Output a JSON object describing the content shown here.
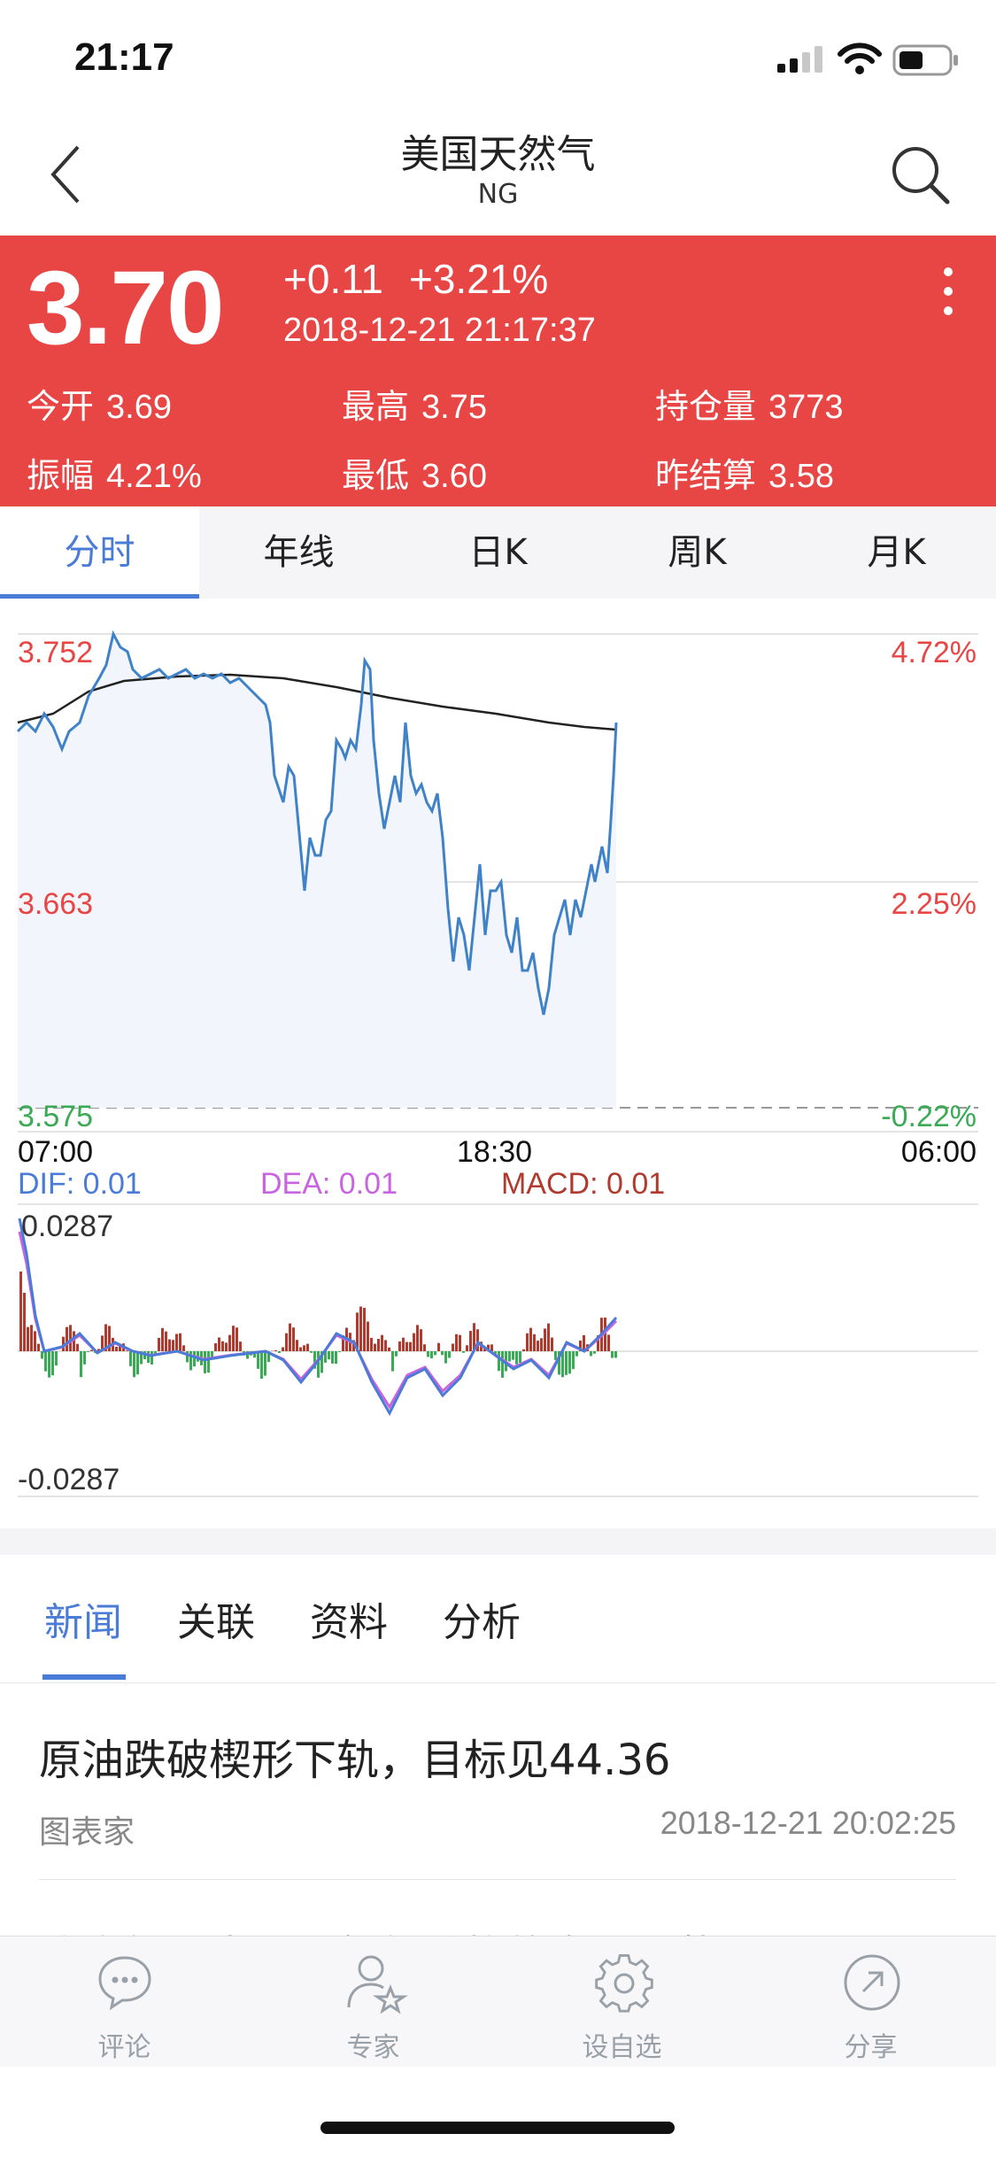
{
  "status": {
    "time": "21:17"
  },
  "nav": {
    "title": "美国天然气",
    "subtitle": "NG"
  },
  "quote": {
    "price": "3.70",
    "change": "+0.11",
    "change_pct": "+3.21%",
    "timestamp": "2018-12-21 21:17:37",
    "stats": [
      {
        "label": "今开",
        "value": "3.69"
      },
      {
        "label": "最高",
        "value": "3.75"
      },
      {
        "label": "持仓量",
        "value": "3773"
      },
      {
        "label": "振幅",
        "value": "4.21%"
      },
      {
        "label": "最低",
        "value": "3.60"
      },
      {
        "label": "昨结算",
        "value": "3.58"
      }
    ],
    "bg_color": "#e84545"
  },
  "period_tabs": [
    "分时",
    "年线",
    "日K",
    "周K",
    "月K"
  ],
  "chart": {
    "y_left": [
      "3.752",
      "3.663",
      "3.575"
    ],
    "y_right": [
      "4.72%",
      "2.25%",
      "-0.22%"
    ],
    "x_labels": [
      "07:00",
      "18:30",
      "06:00"
    ],
    "macd_labels": {
      "dif": "DIF: 0.01",
      "dea": "DEA: 0.01",
      "macd": "MACD: 0.01"
    },
    "macd_range": [
      "0.0287",
      "-0.0287"
    ],
    "colors": {
      "price_line": "#3f82c8",
      "avg_line": "#222222",
      "up": "#e84545",
      "down": "#3aaa55",
      "dif": "#4a7bd6",
      "dea": "#c864e0",
      "macd": "#b03a2e"
    }
  },
  "news_tabs": [
    "新闻",
    "关联",
    "资料",
    "分析"
  ],
  "news": [
    {
      "title": "原油跌破楔形下轨，目标见44.36",
      "source": "图表家",
      "time": "2018-12-21 20:02:25"
    },
    {
      "title": "收高轨：中国天然气价格的发展现状"
    }
  ],
  "bottom_bar": [
    {
      "label": "评论",
      "icon": "comment-icon"
    },
    {
      "label": "专家",
      "icon": "expert-icon"
    },
    {
      "label": "设自选",
      "icon": "gear-icon"
    },
    {
      "label": "分享",
      "icon": "share-icon"
    }
  ]
}
